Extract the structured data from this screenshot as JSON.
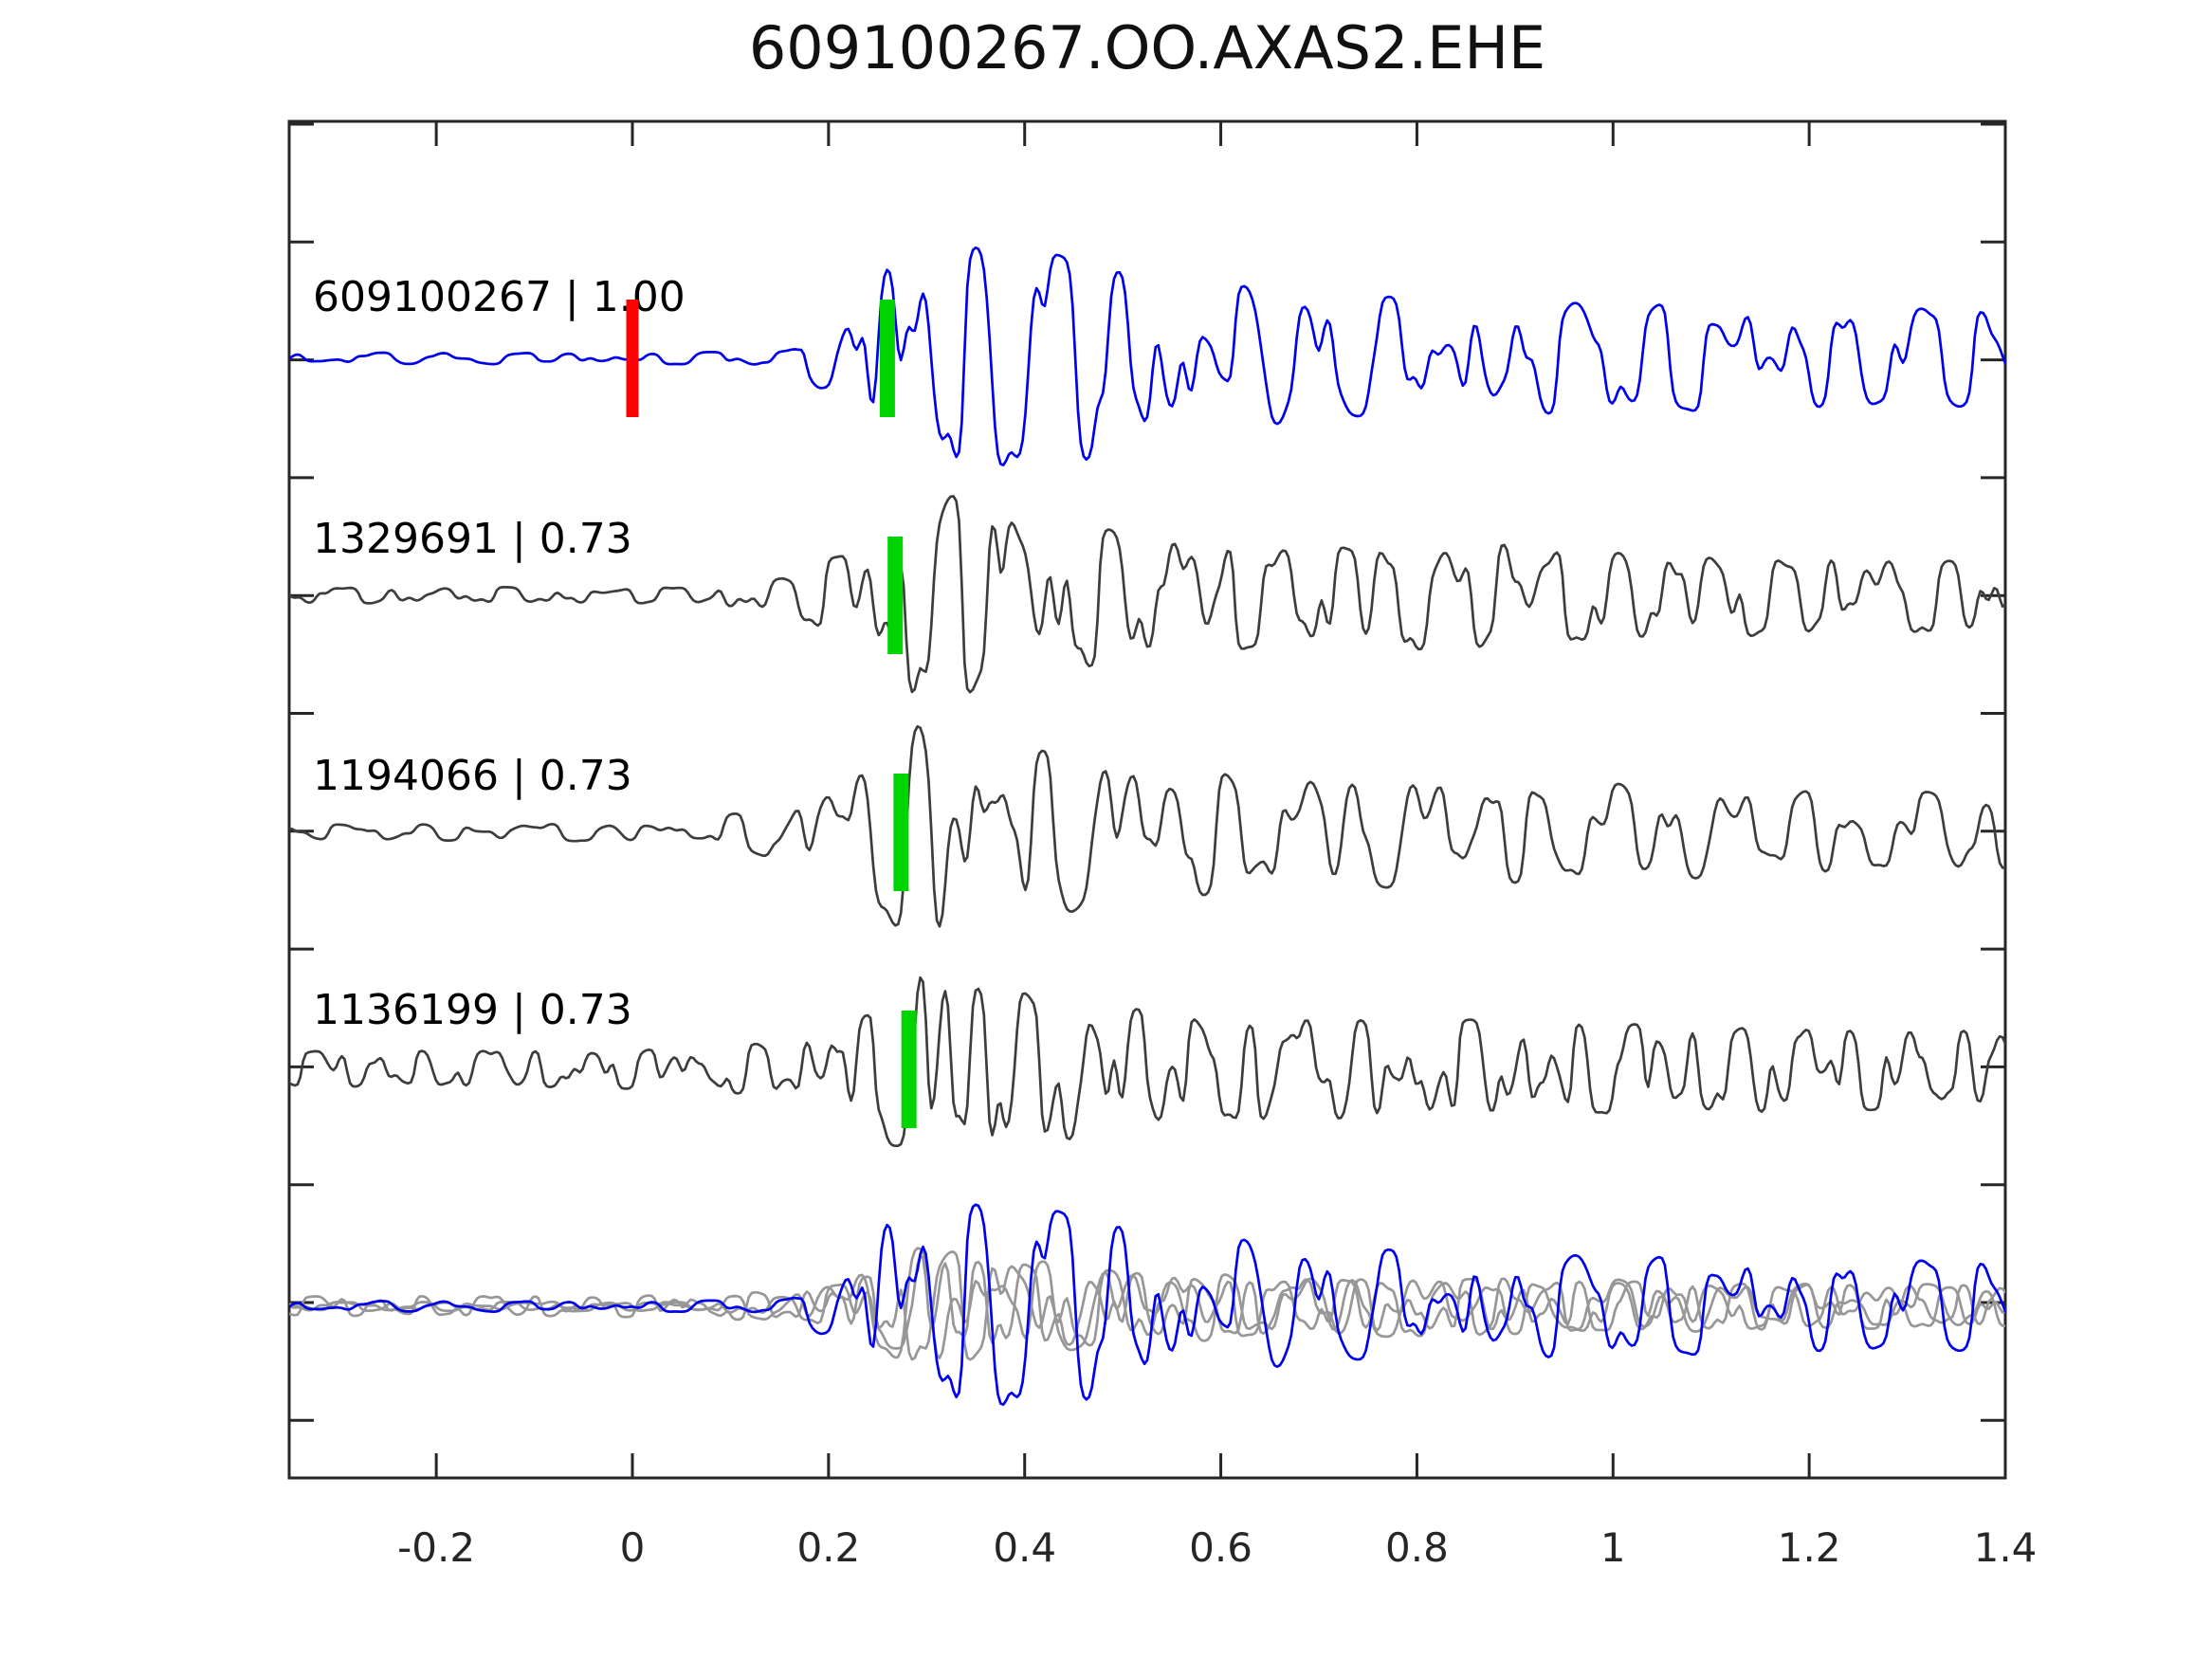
{
  "chart_data": {
    "type": "line",
    "subtype": "seismic-waveform-correlation-stack",
    "title": "609100267.OO.AXAS2.EHE",
    "xlabel": "",
    "ylabel": "",
    "xlim": [
      -0.35,
      1.4
    ],
    "grid": false,
    "legend": "none",
    "xticks": [
      -0.2,
      0,
      0.2,
      0.4,
      0.6,
      0.8,
      1,
      1.2,
      1.4
    ],
    "xtick_labels": [
      "-0.2",
      "0",
      "0.2",
      "0.4",
      "0.6",
      "0.8",
      "1",
      "1.2",
      "1.4"
    ],
    "side_ticks_count": 12,
    "colors": {
      "template_trace": "#0000ee",
      "detection_trace": "#3d3d3d",
      "overlay_gray": "#979797",
      "pick_red": "#ff0000",
      "pick_green": "#00d400",
      "axis": "#262626",
      "tick_text": "#262626"
    },
    "traces": [
      {
        "id": "609100267",
        "correlation": "1.00",
        "label": "609100267 | 1.00",
        "role": "template",
        "color_key": "template_trace",
        "picks": [
          {
            "t": 0.0,
            "color_key": "pick_red",
            "name": "origin-pick"
          },
          {
            "t": 0.26,
            "color_key": "pick_green",
            "name": "phase-pick"
          }
        ],
        "seed": 7,
        "roughness": 0.85,
        "envelope": [
          [
            -0.35,
            6
          ],
          [
            0.1,
            7
          ],
          [
            0.17,
            12
          ],
          [
            0.21,
            55
          ],
          [
            0.24,
            125
          ],
          [
            0.33,
            130
          ],
          [
            0.45,
            120
          ],
          [
            0.55,
            92
          ],
          [
            0.7,
            68
          ],
          [
            0.9,
            64
          ],
          [
            1.1,
            60
          ],
          [
            1.4,
            54
          ]
        ]
      },
      {
        "id": "1329691",
        "correlation": "0.73",
        "label": "1329691 | 0.73",
        "role": "detection",
        "color_key": "detection_trace",
        "picks": [
          {
            "t": 0.268,
            "color_key": "pick_green",
            "name": "phase-pick"
          }
        ],
        "seed": 13,
        "roughness": 1.1,
        "envelope": [
          [
            -0.35,
            9
          ],
          [
            0.05,
            9
          ],
          [
            0.15,
            20
          ],
          [
            0.23,
            55
          ],
          [
            0.29,
            130
          ],
          [
            0.36,
            105
          ],
          [
            0.5,
            72
          ],
          [
            0.65,
            58
          ],
          [
            0.85,
            62
          ],
          [
            1.05,
            48
          ],
          [
            1.4,
            40
          ]
        ]
      },
      {
        "id": "1194066",
        "correlation": "0.73",
        "label": "1194066 | 0.73",
        "role": "detection",
        "color_key": "detection_trace",
        "picks": [
          {
            "t": 0.274,
            "color_key": "pick_green",
            "name": "phase-pick"
          }
        ],
        "seed": 21,
        "roughness": 1.05,
        "envelope": [
          [
            -0.35,
            9
          ],
          [
            0.03,
            10
          ],
          [
            0.13,
            25
          ],
          [
            0.22,
            60
          ],
          [
            0.3,
            135
          ],
          [
            0.38,
            100
          ],
          [
            0.52,
            75
          ],
          [
            0.7,
            62
          ],
          [
            0.9,
            58
          ],
          [
            1.1,
            50
          ],
          [
            1.4,
            42
          ]
        ]
      },
      {
        "id": "1136199",
        "correlation": "0.73",
        "label": "1136199 | 0.73",
        "role": "detection",
        "color_key": "detection_trace",
        "picks": [
          {
            "t": 0.282,
            "color_key": "pick_green",
            "name": "phase-pick"
          }
        ],
        "seed": 29,
        "roughness": 1.45,
        "envelope": [
          [
            -0.35,
            20
          ],
          [
            0.05,
            22
          ],
          [
            0.15,
            30
          ],
          [
            0.24,
            60
          ],
          [
            0.3,
            120
          ],
          [
            0.4,
            85
          ],
          [
            0.55,
            60
          ],
          [
            0.75,
            55
          ],
          [
            0.95,
            52
          ],
          [
            1.15,
            48
          ],
          [
            1.4,
            42
          ]
        ]
      }
    ],
    "overlay": {
      "description": "all detections (gray) overlaid with template (blue) on common baseline",
      "gray_scale": 0.55,
      "blue_scale": 0.92
    }
  }
}
